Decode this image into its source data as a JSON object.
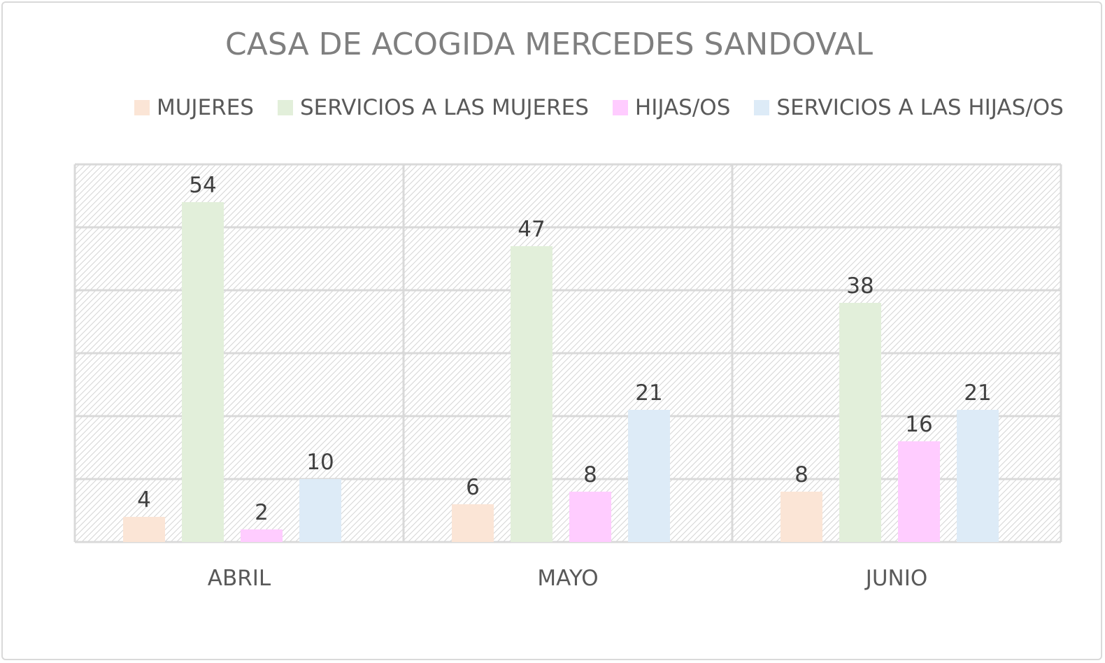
{
  "chart_data": {
    "type": "bar",
    "title": "CASA DE ACOGIDA MERCEDES SANDOVAL",
    "categories": [
      "ABRIL",
      "MAYO",
      "JUNIO"
    ],
    "series": [
      {
        "name": "MUJERES",
        "values": [
          4,
          6,
          8
        ],
        "color": "#fbe5d6"
      },
      {
        "name": "SERVICIOS A LAS MUJERES",
        "values": [
          54,
          47,
          38
        ],
        "color": "#e2efda"
      },
      {
        "name": "HIJAS/OS",
        "values": [
          2,
          8,
          16
        ],
        "color": "#ffccff"
      },
      {
        "name": "SERVICIOS A LAS HIJAS/OS",
        "values": [
          10,
          21,
          21
        ],
        "color": "#ddebf7"
      }
    ],
    "ylim": [
      0,
      60
    ],
    "gridlines": true,
    "legend_position": "top",
    "data_labels": true,
    "plot_background": "hatched light gray"
  }
}
